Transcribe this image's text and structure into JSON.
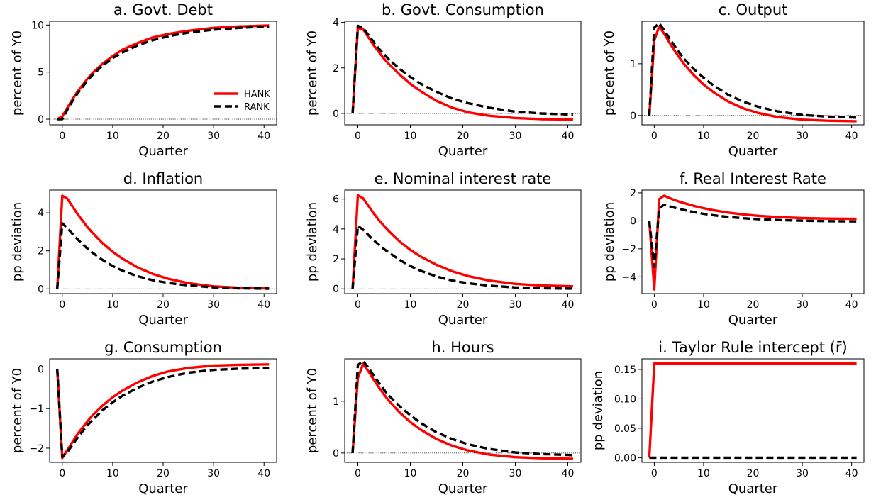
{
  "figure": {
    "background": "#ffffff"
  },
  "chart_data": [
    {
      "type": "line",
      "title": "a. Govt. Debt",
      "xlabel": "Quarter",
      "ylabel": "percent of Y0",
      "xlim": [
        -2.5,
        42.5
      ],
      "ylim": [
        -0.6,
        10.4
      ],
      "xticks": [
        0,
        10,
        20,
        30,
        40
      ],
      "xtick_labels": [
        "0",
        "10",
        "20",
        "30",
        "40"
      ],
      "yticks": [
        0,
        5,
        10
      ],
      "ytick_labels": [
        "0",
        "5",
        "10"
      ],
      "zero_line": true,
      "legend": {
        "location": "lower-right",
        "entries": [
          "HANK",
          "RANK"
        ]
      },
      "series": [
        {
          "name": "HANK",
          "color": "#ff0000",
          "style": "solid",
          "x": [
            -1,
            0,
            1,
            2,
            3,
            4,
            5,
            6,
            8,
            10,
            12,
            15,
            18,
            21,
            25,
            30,
            35,
            41
          ],
          "y": [
            0,
            0.3,
            1.2,
            2.1,
            2.9,
            3.6,
            4.3,
            4.9,
            5.9,
            6.7,
            7.4,
            8.1,
            8.7,
            9.05,
            9.4,
            9.7,
            9.85,
            9.95
          ]
        },
        {
          "name": "RANK",
          "color": "#000000",
          "style": "dashed",
          "x": [
            -1,
            0,
            1,
            2,
            3,
            4,
            5,
            6,
            8,
            10,
            12,
            15,
            18,
            21,
            25,
            30,
            35,
            41
          ],
          "y": [
            0,
            0,
            1.0,
            1.9,
            2.7,
            3.4,
            4.1,
            4.7,
            5.7,
            6.5,
            7.1,
            7.85,
            8.4,
            8.8,
            9.2,
            9.5,
            9.7,
            9.85
          ]
        }
      ]
    },
    {
      "type": "line",
      "title": "b. Govt. Consumption",
      "xlabel": "Quarter",
      "ylabel": "percent of Y0",
      "xlim": [
        -2.5,
        42.5
      ],
      "ylim": [
        -0.5,
        4.05
      ],
      "xticks": [
        0,
        10,
        20,
        30,
        40
      ],
      "xtick_labels": [
        "0",
        "10",
        "20",
        "30",
        "40"
      ],
      "yticks": [
        0,
        2,
        4
      ],
      "ytick_labels": [
        "0",
        "2",
        "4"
      ],
      "zero_line": true,
      "series": [
        {
          "name": "HANK",
          "color": "#ff0000",
          "style": "solid",
          "x": [
            -1,
            0,
            1,
            2,
            3,
            4,
            5,
            6,
            8,
            10,
            12,
            15,
            18,
            21,
            25,
            30,
            35,
            41
          ],
          "y": [
            0,
            3.75,
            3.7,
            3.35,
            3.0,
            2.7,
            2.4,
            2.15,
            1.7,
            1.3,
            0.97,
            0.55,
            0.25,
            0.05,
            -0.1,
            -0.2,
            -0.25,
            -0.27
          ]
        },
        {
          "name": "RANK",
          "color": "#000000",
          "style": "dashed",
          "x": [
            -1,
            0,
            1,
            2,
            3,
            4,
            5,
            6,
            8,
            10,
            12,
            15,
            18,
            21,
            25,
            30,
            35,
            41
          ],
          "y": [
            0,
            3.85,
            3.75,
            3.45,
            3.15,
            2.85,
            2.6,
            2.35,
            1.95,
            1.6,
            1.3,
            0.95,
            0.65,
            0.45,
            0.25,
            0.08,
            0.0,
            -0.05
          ]
        }
      ]
    },
    {
      "type": "line",
      "title": "c. Output",
      "xlabel": "Quarter",
      "ylabel": "percent of Y0",
      "xlim": [
        -2.5,
        42.5
      ],
      "ylim": [
        -0.18,
        1.82
      ],
      "xticks": [
        0,
        10,
        20,
        30,
        40
      ],
      "xtick_labels": [
        "0",
        "10",
        "20",
        "30",
        "40"
      ],
      "yticks": [
        0,
        1
      ],
      "ytick_labels": [
        "0",
        "1"
      ],
      "zero_line": true,
      "series": [
        {
          "name": "HANK",
          "color": "#ff0000",
          "style": "solid",
          "x": [
            -1,
            0,
            1,
            2,
            3,
            4,
            5,
            6,
            8,
            10,
            12,
            15,
            18,
            21,
            25,
            30,
            35,
            41
          ],
          "y": [
            0,
            1.45,
            1.72,
            1.58,
            1.42,
            1.27,
            1.13,
            1.0,
            0.78,
            0.6,
            0.45,
            0.27,
            0.14,
            0.05,
            -0.03,
            -0.08,
            -0.1,
            -0.11
          ]
        },
        {
          "name": "RANK",
          "color": "#000000",
          "style": "dashed",
          "x": [
            -1,
            0,
            1,
            2,
            3,
            4,
            5,
            6,
            8,
            10,
            12,
            15,
            18,
            21,
            25,
            30,
            35,
            41
          ],
          "y": [
            0,
            1.7,
            1.78,
            1.65,
            1.5,
            1.36,
            1.22,
            1.1,
            0.9,
            0.73,
            0.58,
            0.4,
            0.27,
            0.17,
            0.08,
            0.01,
            -0.02,
            -0.04
          ]
        }
      ]
    },
    {
      "type": "line",
      "title": "d. Inflation",
      "xlabel": "Quarter",
      "ylabel": "pp deviation",
      "xlim": [
        -2.5,
        42.5
      ],
      "ylim": [
        -0.25,
        5.2
      ],
      "xticks": [
        0,
        10,
        20,
        30,
        40
      ],
      "xtick_labels": [
        "0",
        "10",
        "20",
        "30",
        "40"
      ],
      "yticks": [
        0,
        2,
        4
      ],
      "ytick_labels": [
        "0",
        "2",
        "4"
      ],
      "zero_line": true,
      "series": [
        {
          "name": "HANK",
          "color": "#ff0000",
          "style": "solid",
          "x": [
            -1,
            0,
            1,
            2,
            3,
            4,
            5,
            6,
            8,
            10,
            12,
            15,
            18,
            21,
            25,
            30,
            35,
            41
          ],
          "y": [
            0,
            4.9,
            4.75,
            4.35,
            3.95,
            3.6,
            3.25,
            2.95,
            2.4,
            1.95,
            1.58,
            1.12,
            0.78,
            0.53,
            0.3,
            0.13,
            0.06,
            0.02
          ]
        },
        {
          "name": "RANK",
          "color": "#000000",
          "style": "dashed",
          "x": [
            -1,
            0,
            1,
            2,
            3,
            4,
            5,
            6,
            8,
            10,
            12,
            15,
            18,
            21,
            25,
            30,
            35,
            41
          ],
          "y": [
            0,
            3.45,
            3.2,
            2.9,
            2.62,
            2.36,
            2.12,
            1.9,
            1.52,
            1.2,
            0.95,
            0.66,
            0.45,
            0.31,
            0.18,
            0.08,
            0.03,
            0.01
          ]
        }
      ]
    },
    {
      "type": "line",
      "title": "e. Nominal interest rate",
      "xlabel": "Quarter",
      "ylabel": "pp deviation",
      "xlim": [
        -2.5,
        42.5
      ],
      "ylim": [
        -0.32,
        6.6
      ],
      "xticks": [
        0,
        10,
        20,
        30,
        40
      ],
      "xtick_labels": [
        "0",
        "10",
        "20",
        "30",
        "40"
      ],
      "yticks": [
        0,
        2,
        4,
        6
      ],
      "ytick_labels": [
        "0",
        "2",
        "4",
        "6"
      ],
      "zero_line": true,
      "series": [
        {
          "name": "HANK",
          "color": "#ff0000",
          "style": "solid",
          "x": [
            -1,
            0,
            1,
            2,
            3,
            4,
            5,
            6,
            8,
            10,
            12,
            15,
            18,
            21,
            25,
            30,
            35,
            41
          ],
          "y": [
            0,
            6.25,
            6.05,
            5.55,
            5.05,
            4.6,
            4.2,
            3.82,
            3.15,
            2.6,
            2.15,
            1.6,
            1.17,
            0.85,
            0.55,
            0.33,
            0.22,
            0.17
          ]
        },
        {
          "name": "RANK",
          "color": "#000000",
          "style": "dashed",
          "x": [
            -1,
            0,
            1,
            2,
            3,
            4,
            5,
            6,
            8,
            10,
            12,
            15,
            18,
            21,
            25,
            30,
            35,
            41
          ],
          "y": [
            0,
            4.2,
            3.95,
            3.6,
            3.25,
            2.95,
            2.65,
            2.4,
            1.92,
            1.52,
            1.2,
            0.82,
            0.55,
            0.37,
            0.21,
            0.09,
            0.04,
            0.01
          ]
        }
      ]
    },
    {
      "type": "line",
      "title": "f. Real Interest Rate",
      "xlabel": "Quarter",
      "ylabel": "pp deviation",
      "xlim": [
        -2.5,
        42.5
      ],
      "ylim": [
        -5.2,
        2.2
      ],
      "xticks": [
        0,
        10,
        20,
        30,
        40
      ],
      "xtick_labels": [
        "0",
        "10",
        "20",
        "30",
        "40"
      ],
      "yticks": [
        -4,
        -2,
        0,
        2
      ],
      "ytick_labels": [
        "−4",
        "−2",
        "0",
        "2"
      ],
      "zero_line": true,
      "series": [
        {
          "name": "HANK",
          "color": "#ff0000",
          "style": "solid",
          "x": [
            -1,
            0,
            1,
            2,
            3,
            4,
            5,
            6,
            8,
            10,
            12,
            15,
            18,
            21,
            25,
            30,
            35,
            41
          ],
          "y": [
            0,
            -4.9,
            1.55,
            1.8,
            1.65,
            1.5,
            1.38,
            1.27,
            1.07,
            0.9,
            0.76,
            0.59,
            0.46,
            0.36,
            0.27,
            0.2,
            0.16,
            0.14
          ]
        },
        {
          "name": "RANK",
          "color": "#000000",
          "style": "dashed",
          "x": [
            -1,
            0,
            1,
            2,
            3,
            4,
            5,
            6,
            8,
            10,
            12,
            15,
            18,
            21,
            25,
            30,
            35,
            41
          ],
          "y": [
            0,
            -3.3,
            0.9,
            1.15,
            1.05,
            0.95,
            0.86,
            0.78,
            0.63,
            0.5,
            0.4,
            0.28,
            0.19,
            0.12,
            0.06,
            0.01,
            -0.02,
            -0.04
          ]
        }
      ]
    },
    {
      "type": "line",
      "title": "g. Consumption",
      "xlabel": "Quarter",
      "ylabel": "percent of Y0",
      "xlim": [
        -2.5,
        42.5
      ],
      "ylim": [
        -2.36,
        0.26
      ],
      "xticks": [
        0,
        10,
        20,
        30,
        40
      ],
      "xtick_labels": [
        "0",
        "10",
        "20",
        "30",
        "40"
      ],
      "yticks": [
        -2,
        -1,
        0
      ],
      "ytick_labels": [
        "−2",
        "−1",
        "0"
      ],
      "zero_line": true,
      "series": [
        {
          "name": "HANK",
          "color": "#ff0000",
          "style": "solid",
          "x": [
            -1,
            0,
            1,
            2,
            3,
            4,
            5,
            6,
            8,
            10,
            12,
            15,
            18,
            21,
            25,
            30,
            35,
            41
          ],
          "y": [
            0,
            -2.25,
            -2.05,
            -1.85,
            -1.65,
            -1.48,
            -1.32,
            -1.17,
            -0.92,
            -0.71,
            -0.54,
            -0.33,
            -0.17,
            -0.06,
            0.03,
            0.09,
            0.11,
            0.12
          ]
        },
        {
          "name": "RANK",
          "color": "#000000",
          "style": "dashed",
          "x": [
            -1,
            0,
            1,
            2,
            3,
            4,
            5,
            6,
            8,
            10,
            12,
            15,
            18,
            21,
            25,
            30,
            35,
            41
          ],
          "y": [
            0,
            -2.22,
            -2.1,
            -1.92,
            -1.74,
            -1.58,
            -1.42,
            -1.29,
            -1.04,
            -0.84,
            -0.67,
            -0.47,
            -0.31,
            -0.2,
            -0.09,
            -0.02,
            0.01,
            0.03
          ]
        }
      ]
    },
    {
      "type": "line",
      "title": "h. Hours",
      "xlabel": "Quarter",
      "ylabel": "percent of Y0",
      "xlim": [
        -2.5,
        42.5
      ],
      "ylim": [
        -0.18,
        1.82
      ],
      "xticks": [
        0,
        10,
        20,
        30,
        40
      ],
      "xtick_labels": [
        "0",
        "10",
        "20",
        "30",
        "40"
      ],
      "yticks": [
        0,
        1
      ],
      "ytick_labels": [
        "0",
        "1"
      ],
      "zero_line": true,
      "series": [
        {
          "name": "HANK",
          "color": "#ff0000",
          "style": "solid",
          "x": [
            -1,
            0,
            1,
            2,
            3,
            4,
            5,
            6,
            8,
            10,
            12,
            15,
            18,
            21,
            25,
            30,
            35,
            41
          ],
          "y": [
            0,
            1.45,
            1.72,
            1.58,
            1.42,
            1.27,
            1.13,
            1.0,
            0.78,
            0.6,
            0.45,
            0.27,
            0.14,
            0.05,
            -0.03,
            -0.08,
            -0.1,
            -0.11
          ]
        },
        {
          "name": "RANK",
          "color": "#000000",
          "style": "dashed",
          "x": [
            -1,
            0,
            1,
            2,
            3,
            4,
            5,
            6,
            8,
            10,
            12,
            15,
            18,
            21,
            25,
            30,
            35,
            41
          ],
          "y": [
            0,
            1.7,
            1.78,
            1.65,
            1.5,
            1.36,
            1.22,
            1.1,
            0.9,
            0.73,
            0.58,
            0.4,
            0.27,
            0.17,
            0.08,
            0.01,
            -0.02,
            -0.04
          ]
        }
      ]
    },
    {
      "type": "line",
      "title": "i. Taylor Rule intercept (r̄)",
      "xlabel": "Quarter",
      "ylabel": "pp deviation",
      "xlim": [
        -2.5,
        42.5
      ],
      "ylim": [
        -0.008,
        0.168
      ],
      "xticks": [
        0,
        10,
        20,
        30,
        40
      ],
      "xtick_labels": [
        "0",
        "10",
        "20",
        "30",
        "40"
      ],
      "yticks": [
        0.0,
        0.05,
        0.1,
        0.15
      ],
      "ytick_labels": [
        "0.00",
        "0.05",
        "0.10",
        "0.15"
      ],
      "zero_line": false,
      "series": [
        {
          "name": "HANK",
          "color": "#ff0000",
          "style": "solid",
          "x": [
            -1,
            0,
            41
          ],
          "y": [
            0,
            0.16,
            0.16
          ]
        },
        {
          "name": "RANK",
          "color": "#000000",
          "style": "dashed",
          "x": [
            -1,
            0,
            41
          ],
          "y": [
            0,
            0,
            0
          ]
        }
      ]
    }
  ]
}
